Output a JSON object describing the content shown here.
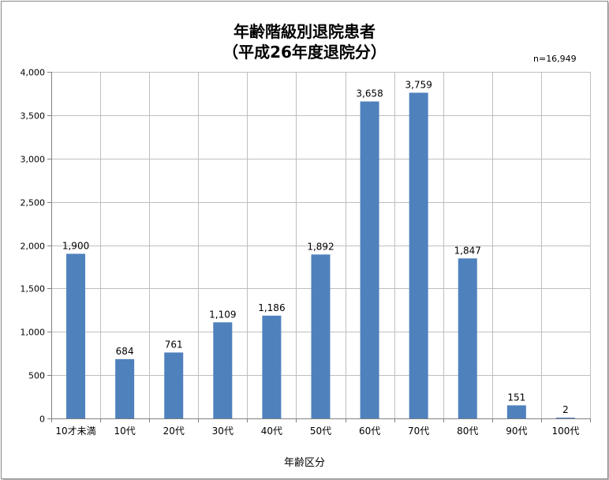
{
  "chart_data": {
    "type": "bar",
    "title_line1": "年齢階級別退院患者",
    "title_line2": "（平成26年度退院分）",
    "note": "n=16,949",
    "xlabel": "年齢区分",
    "ylabel": "",
    "ylim": [
      0,
      4000
    ],
    "yticks": [
      "0",
      "500",
      "1,000",
      "1,500",
      "2,000",
      "2,500",
      "3,000",
      "3,500",
      "4,000"
    ],
    "categories": [
      "10才未満",
      "10代",
      "20代",
      "30代",
      "40代",
      "50代",
      "60代",
      "70代",
      "80代",
      "90代",
      "100代"
    ],
    "values": [
      1900,
      684,
      761,
      1109,
      1186,
      1892,
      3658,
      3759,
      1847,
      151,
      2
    ],
    "value_labels": [
      "1,900",
      "684",
      "761",
      "1,109",
      "1,186",
      "1,892",
      "3,658",
      "3,759",
      "1,847",
      "151",
      "2"
    ],
    "grid": true,
    "legend": "none",
    "bar_color": "#4f81bd",
    "grid_color": "#bfbfbf"
  }
}
